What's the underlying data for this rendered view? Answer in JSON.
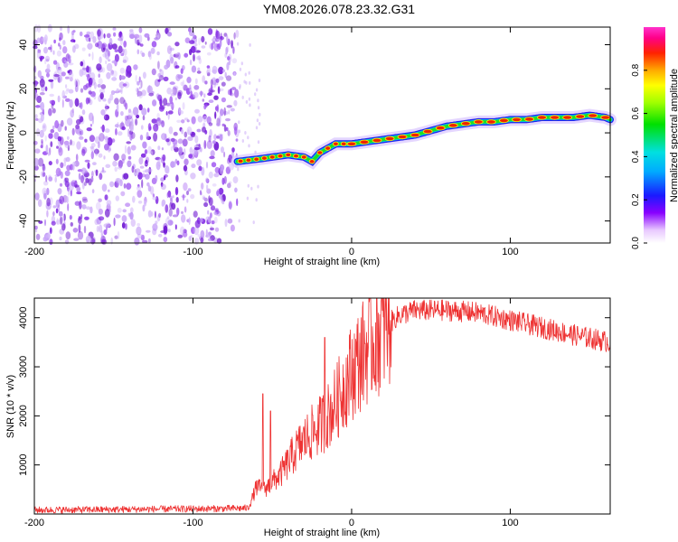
{
  "figure": {
    "title": "YM08.2026.078.23.32.G31"
  },
  "chart_data": [
    {
      "type": "heatmap",
      "name": "spectrogram",
      "xlabel": "Height of straight line (km)",
      "ylabel": "Frequency (Hz)",
      "xlim": [
        -200,
        163
      ],
      "ylim": [
        -50,
        48
      ],
      "xticks": [
        -200,
        -100,
        0,
        100
      ],
      "yticks": [
        -40,
        -20,
        0,
        20,
        40
      ],
      "noise_region": {
        "x_from": -200,
        "x_to": -72
      },
      "ridge": {
        "x": [
          -72,
          -60,
          -50,
          -40,
          -30,
          -25,
          -20,
          -10,
          0,
          10,
          20,
          30,
          40,
          50,
          60,
          70,
          80,
          90,
          100,
          110,
          120,
          130,
          140,
          150,
          160,
          163
        ],
        "y": [
          -13,
          -12,
          -11,
          -10,
          -11,
          -13,
          -9,
          -5,
          -5,
          -4,
          -3,
          -2,
          -1,
          1,
          3,
          4,
          5,
          5,
          6,
          6,
          7,
          7,
          7,
          8,
          7,
          6
        ]
      },
      "colorbar": {
        "label": "Normalized spectral amplitude",
        "range": [
          0.0,
          1.0
        ],
        "ticks": [
          0.0,
          0.2,
          0.4,
          0.6,
          0.8
        ]
      }
    },
    {
      "type": "line",
      "name": "snr",
      "xlabel": "Height of straight line (km)",
      "ylabel": "SNR (10 * v/v)",
      "xlim": [
        -200,
        163
      ],
      "ylim": [
        0,
        4400
      ],
      "xticks": [
        -200,
        -100,
        0,
        100
      ],
      "yticks": [
        1000,
        2000,
        3000,
        4000
      ],
      "color": "#ee3333",
      "envelope": {
        "x": [
          -200,
          -80,
          -65,
          -60,
          -55,
          -50,
          -45,
          -40,
          -35,
          -30,
          -25,
          -20,
          -15,
          -10,
          -5,
          0,
          10,
          20,
          30,
          40,
          60,
          80,
          100,
          120,
          140,
          163
        ],
        "y": [
          80,
          110,
          120,
          550,
          500,
          650,
          800,
          1050,
          1300,
          1500,
          1650,
          1800,
          2000,
          2250,
          2600,
          2900,
          3400,
          3800,
          4050,
          4150,
          4150,
          4100,
          3950,
          3800,
          3650,
          3500
        ]
      },
      "spikes": [
        {
          "x": -56,
          "y": 2450
        },
        {
          "x": -51,
          "y": 2100
        },
        {
          "x": -17,
          "y": 3600
        }
      ]
    }
  ]
}
